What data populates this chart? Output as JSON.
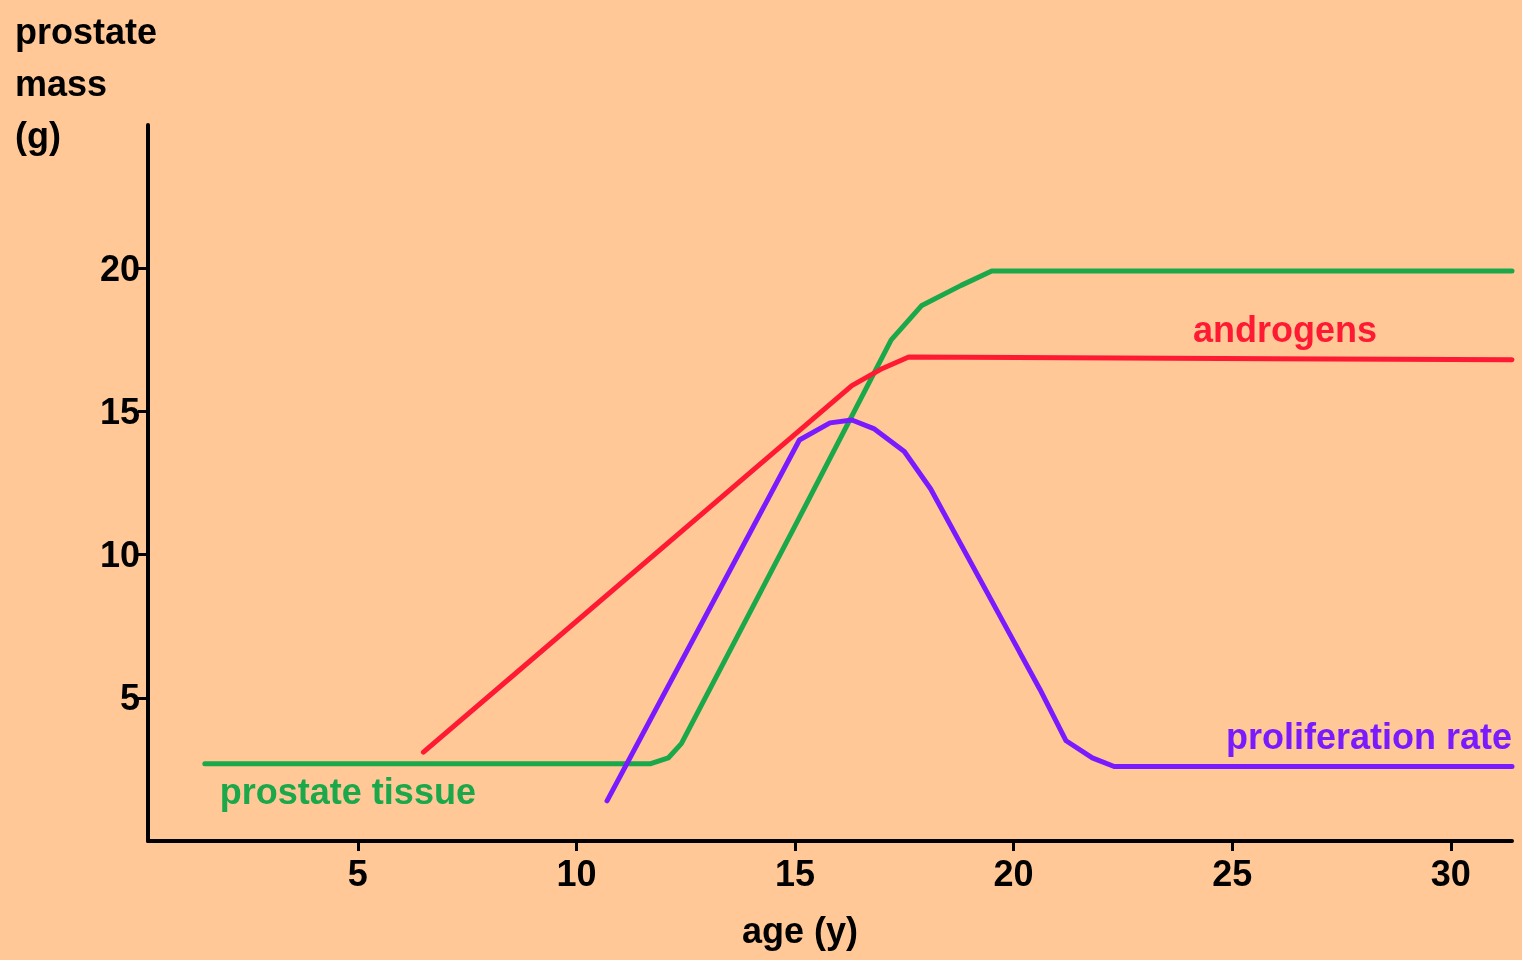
{
  "chart_data": {
    "type": "line",
    "xlabel": "age (y)",
    "ylabel": "prostate\nmass\n(g)",
    "xlim": [
      0.2,
      31.4
    ],
    "xticks": [
      5,
      10,
      15,
      20,
      25,
      30
    ],
    "ylim": [
      0,
      25
    ],
    "yticks": [
      5,
      10,
      15,
      20
    ],
    "grid": false,
    "legend": false,
    "marker": "none",
    "line_style": "solid",
    "series": [
      {
        "name": "prostate tissue",
        "color": "#1aa84a",
        "x": [
          1.5,
          11.7,
          12.1,
          12.4,
          15,
          17.2,
          17.9,
          18.8,
          19.5,
          31.4
        ],
        "values": [
          2.7,
          2.7,
          2.9,
          3.4,
          11.0,
          17.5,
          18.7,
          19.4,
          19.9,
          19.9
        ]
      },
      {
        "name": "androgens",
        "color": "#ff1a33",
        "x": [
          6.5,
          16.3,
          17,
          17.6,
          31.4
        ],
        "values": [
          3.1,
          15.9,
          16.5,
          16.9,
          16.8
        ]
      },
      {
        "name": "proliferation rate",
        "color": "#7a1aff",
        "x": [
          10.7,
          15.1,
          15.8,
          16.3,
          16.8,
          17.5,
          18.1,
          20.6,
          21.2,
          21.8,
          22.3,
          31.4
        ],
        "values": [
          1.4,
          14.0,
          14.6,
          14.7,
          14.4,
          13.6,
          12.3,
          5.3,
          3.5,
          2.9,
          2.6,
          2.6
        ]
      }
    ]
  }
}
